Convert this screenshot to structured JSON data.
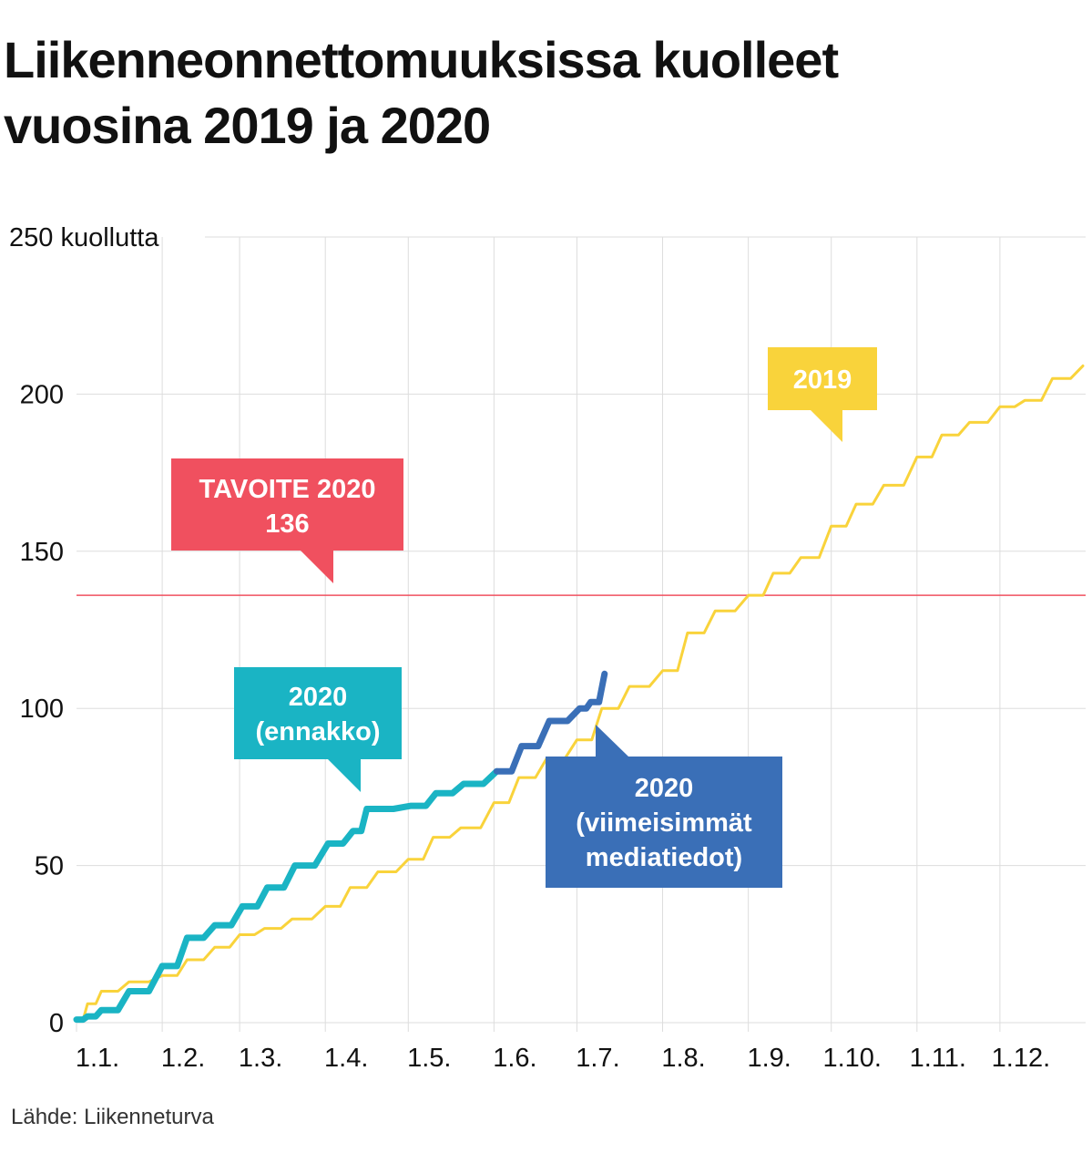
{
  "title_lines": [
    "Liikenneonnettomuuksissa kuolleet",
    "vuosina 2019 ja 2020"
  ],
  "source": "Lähde: Liikenneturva",
  "colors": {
    "series_2019": "#f9d33b",
    "series_2020_ennakko": "#1ab4c4",
    "series_2020_media": "#3a6fb7",
    "target": "#f0505f",
    "grid": "#dddddd"
  },
  "chart_data": {
    "type": "line",
    "title": "Liikenneonnettomuuksissa kuolleet vuosina 2019 ja 2020",
    "xlabel": "",
    "ylabel": "kuollutta",
    "y_unit": "kuollutta",
    "ylim": [
      0,
      250
    ],
    "y_ticks": [
      0,
      50,
      100,
      150,
      200,
      250
    ],
    "y_tick_labels": [
      "0",
      "50",
      "100",
      "150",
      "200",
      "250 kuollutta"
    ],
    "x_ticks": [
      "1.1.",
      "1.2.",
      "1.3.",
      "1.4.",
      "1.5.",
      "1.6.",
      "1.7.",
      "1.8.",
      "1.9.",
      "1.10.",
      "1.11.",
      "1.12."
    ],
    "grid": true,
    "legend": "none (series labelled with callouts)",
    "target": {
      "label": "TAVOITE 2020",
      "value": 136
    },
    "series": [
      {
        "name": "2019",
        "x": [
          "2019-01-01",
          "2019-01-05",
          "2019-01-10",
          "2019-01-20",
          "2019-02-01",
          "2019-02-10",
          "2019-02-20",
          "2019-03-01",
          "2019-03-10",
          "2019-03-20",
          "2019-04-01",
          "2019-04-10",
          "2019-04-20",
          "2019-05-01",
          "2019-05-10",
          "2019-05-20",
          "2019-06-01",
          "2019-06-10",
          "2019-06-20",
          "2019-07-01",
          "2019-07-10",
          "2019-07-20",
          "2019-08-01",
          "2019-08-10",
          "2019-08-20",
          "2019-09-01",
          "2019-09-10",
          "2019-09-20",
          "2019-10-01",
          "2019-10-10",
          "2019-10-20",
          "2019-11-01",
          "2019-11-10",
          "2019-11-20",
          "2019-12-01",
          "2019-12-10",
          "2019-12-20",
          "2019-12-31"
        ],
        "values": [
          1,
          6,
          10,
          13,
          15,
          20,
          24,
          28,
          30,
          33,
          37,
          43,
          48,
          52,
          59,
          62,
          70,
          78,
          84,
          90,
          100,
          107,
          112,
          124,
          131,
          136,
          143,
          148,
          158,
          165,
          171,
          180,
          187,
          191,
          196,
          198,
          205,
          209
        ]
      },
      {
        "name": "2020 (ennakko)",
        "x": [
          "2020-01-01",
          "2020-01-05",
          "2020-01-10",
          "2020-01-20",
          "2020-02-01",
          "2020-02-10",
          "2020-02-20",
          "2020-03-01",
          "2020-03-10",
          "2020-03-20",
          "2020-04-01",
          "2020-04-10",
          "2020-04-15",
          "2020-05-01",
          "2020-05-10",
          "2020-05-20",
          "2020-06-01"
        ],
        "values": [
          1,
          2,
          4,
          10,
          18,
          27,
          31,
          37,
          43,
          50,
          57,
          61,
          68,
          69,
          73,
          76,
          80
        ]
      },
      {
        "name": "2020 (viimeisimmät mediatiedot)",
        "x": [
          "2020-06-01",
          "2020-06-10",
          "2020-06-20",
          "2020-07-01",
          "2020-07-05",
          "2020-07-10"
        ],
        "values": [
          80,
          88,
          96,
          100,
          102,
          111
        ]
      }
    ],
    "callouts": {
      "series_2019": [
        "2019"
      ],
      "target": [
        "TAVOITE 2020",
        "136"
      ],
      "series_2020_ennakko": [
        "2020",
        "(ennakko)"
      ],
      "series_2020_media": [
        "2020",
        "(viimeisimmät",
        "mediatiedot)"
      ]
    }
  }
}
